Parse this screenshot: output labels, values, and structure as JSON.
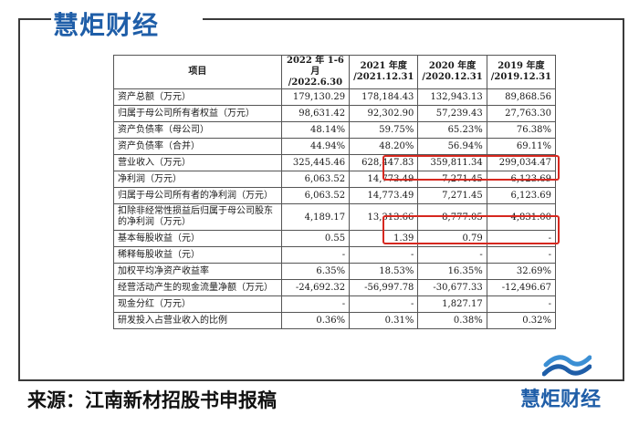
{
  "brand": "慧炬财经",
  "source_caption": "来源：江南新材招股书申报稿",
  "table": {
    "header": {
      "item": "项目",
      "col1": [
        "2022 年 1-6 月",
        "/2022.6.30"
      ],
      "col2": [
        "2021 年度",
        "/2021.12.31"
      ],
      "col3": [
        "2020 年度",
        "/2020.12.31"
      ],
      "col4": [
        "2019 年度",
        "/2019.12.31"
      ]
    },
    "rows": [
      {
        "label": "资产总额（万元）",
        "v": [
          "179,130.29",
          "178,184.43",
          "132,943.13",
          "89,868.56"
        ]
      },
      {
        "label": "归属于母公司所有者权益（万元）",
        "v": [
          "98,631.42",
          "92,302.90",
          "57,239.43",
          "27,763.30"
        ]
      },
      {
        "label": "资产负债率（母公司）",
        "v": [
          "48.14%",
          "59.75%",
          "65.23%",
          "76.38%"
        ]
      },
      {
        "label": "资产负债率（合并）",
        "v": [
          "44.94%",
          "48.20%",
          "56.94%",
          "69.11%"
        ]
      },
      {
        "label": "营业收入（万元）",
        "v": [
          "325,445.46",
          "628,447.83",
          "359,811.34",
          "299,034.47"
        ]
      },
      {
        "label": "净利润（万元）",
        "v": [
          "6,063.52",
          "14,773.49",
          "7,271.45",
          "6,123.69"
        ]
      },
      {
        "label": "归属于母公司所有者的净利润（万元）",
        "v": [
          "6,063.52",
          "14,773.49",
          "7,271.45",
          "6,123.69"
        ]
      },
      {
        "label": "扣除非经常性损益后归属于母公司股东的净利润（万元）",
        "v": [
          "4,189.17",
          "13,313.66",
          "8,777.05",
          "4,831.00"
        ]
      },
      {
        "label": "基本每股收益（元）",
        "v": [
          "0.55",
          "1.39",
          "0.79",
          "-"
        ]
      },
      {
        "label": "稀释每股收益（元）",
        "v": [
          "-",
          "-",
          "-",
          "-"
        ]
      },
      {
        "label": "加权平均净资产收益率",
        "v": [
          "6.35%",
          "18.53%",
          "16.35%",
          "32.69%"
        ]
      },
      {
        "label": "经营活动产生的现金流量净额（万元）",
        "v": [
          "-24,692.32",
          "-56,997.78",
          "-30,677.33",
          "-12,496.67"
        ]
      },
      {
        "label": "现金分红（万元）",
        "v": [
          "-",
          "-",
          "1,827.17",
          "-"
        ]
      },
      {
        "label": "研发投入占营业收入的比例",
        "v": [
          "0.36%",
          "0.31%",
          "0.38%",
          "0.32%"
        ]
      }
    ]
  },
  "colors": {
    "brand_blue": "#1f5ea8",
    "highlight_red": "#d6281f"
  }
}
